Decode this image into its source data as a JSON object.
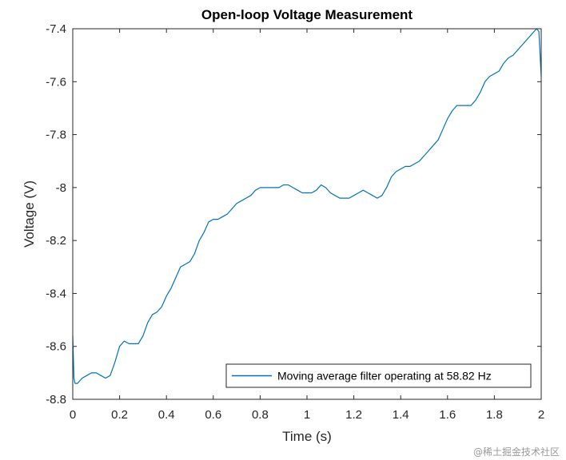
{
  "colors": {
    "series": "#0072bd",
    "axis": "#262626",
    "background": "#ffffff"
  },
  "watermark": "@稀土掘金技术社区",
  "chart_data": {
    "type": "line",
    "title": "Open-loop Voltage Measurement",
    "xlabel": "Time (s)",
    "ylabel": "Voltage (V)",
    "xlim": [
      0,
      2
    ],
    "ylim": [
      -8.8,
      -7.4
    ],
    "x_ticks": [
      0,
      0.2,
      0.4,
      0.6,
      0.8,
      1,
      1.2,
      1.4,
      1.6,
      1.8,
      2
    ],
    "x_tick_labels": [
      "0",
      "0.2",
      "0.4",
      "0.6",
      "0.8",
      "1",
      "1.2",
      "1.4",
      "1.6",
      "1.8",
      "2"
    ],
    "y_ticks": [
      -7.4,
      -7.6,
      -7.8,
      -8,
      -8.2,
      -8.4,
      -8.6,
      -8.8
    ],
    "y_tick_labels": [
      "-7.4",
      "-7.6",
      "-7.8",
      "-8",
      "-8.2",
      "-8.4",
      "-8.6",
      "-8.8"
    ],
    "grid": false,
    "legend_position": "bottom-right",
    "series": [
      {
        "name": "Moving average filter operating at 58.82 Hz",
        "x": [
          0,
          0.005,
          0.01,
          0.02,
          0.04,
          0.06,
          0.08,
          0.1,
          0.12,
          0.14,
          0.16,
          0.18,
          0.2,
          0.22,
          0.24,
          0.26,
          0.28,
          0.3,
          0.32,
          0.34,
          0.36,
          0.38,
          0.4,
          0.42,
          0.44,
          0.46,
          0.48,
          0.5,
          0.52,
          0.54,
          0.56,
          0.58,
          0.6,
          0.62,
          0.64,
          0.66,
          0.68,
          0.7,
          0.72,
          0.74,
          0.76,
          0.78,
          0.8,
          0.82,
          0.84,
          0.86,
          0.88,
          0.9,
          0.92,
          0.94,
          0.96,
          0.98,
          1.0,
          1.02,
          1.04,
          1.06,
          1.08,
          1.1,
          1.12,
          1.14,
          1.16,
          1.18,
          1.2,
          1.22,
          1.24,
          1.26,
          1.28,
          1.3,
          1.32,
          1.34,
          1.36,
          1.38,
          1.4,
          1.42,
          1.44,
          1.46,
          1.48,
          1.5,
          1.52,
          1.54,
          1.56,
          1.58,
          1.6,
          1.62,
          1.64,
          1.66,
          1.68,
          1.7,
          1.72,
          1.74,
          1.76,
          1.78,
          1.8,
          1.82,
          1.84,
          1.86,
          1.88,
          1.9,
          1.92,
          1.94,
          1.96,
          1.98,
          1.99,
          2.0
        ],
        "y": [
          -8.56,
          -8.72,
          -8.74,
          -8.74,
          -8.72,
          -8.71,
          -8.7,
          -8.7,
          -8.71,
          -8.72,
          -8.71,
          -8.66,
          -8.6,
          -8.58,
          -8.59,
          -8.59,
          -8.59,
          -8.56,
          -8.51,
          -8.48,
          -8.47,
          -8.45,
          -8.41,
          -8.38,
          -8.34,
          -8.3,
          -8.29,
          -8.28,
          -8.25,
          -8.2,
          -8.17,
          -8.13,
          -8.12,
          -8.12,
          -8.11,
          -8.1,
          -8.08,
          -8.06,
          -8.05,
          -8.04,
          -8.03,
          -8.01,
          -8.0,
          -8.0,
          -8.0,
          -8.0,
          -8.0,
          -7.99,
          -7.99,
          -8.0,
          -8.01,
          -8.02,
          -8.02,
          -8.02,
          -8.01,
          -7.99,
          -8.0,
          -8.02,
          -8.03,
          -8.04,
          -8.04,
          -8.04,
          -8.03,
          -8.02,
          -8.01,
          -8.02,
          -8.03,
          -8.04,
          -8.03,
          -8.0,
          -7.96,
          -7.94,
          -7.93,
          -7.92,
          -7.92,
          -7.91,
          -7.9,
          -7.88,
          -7.86,
          -7.84,
          -7.82,
          -7.78,
          -7.74,
          -7.71,
          -7.69,
          -7.69,
          -7.69,
          -7.69,
          -7.67,
          -7.64,
          -7.6,
          -7.58,
          -7.57,
          -7.56,
          -7.53,
          -7.51,
          -7.5,
          -7.48,
          -7.46,
          -7.44,
          -7.42,
          -7.4,
          -7.41,
          -7.58
        ]
      }
    ]
  }
}
